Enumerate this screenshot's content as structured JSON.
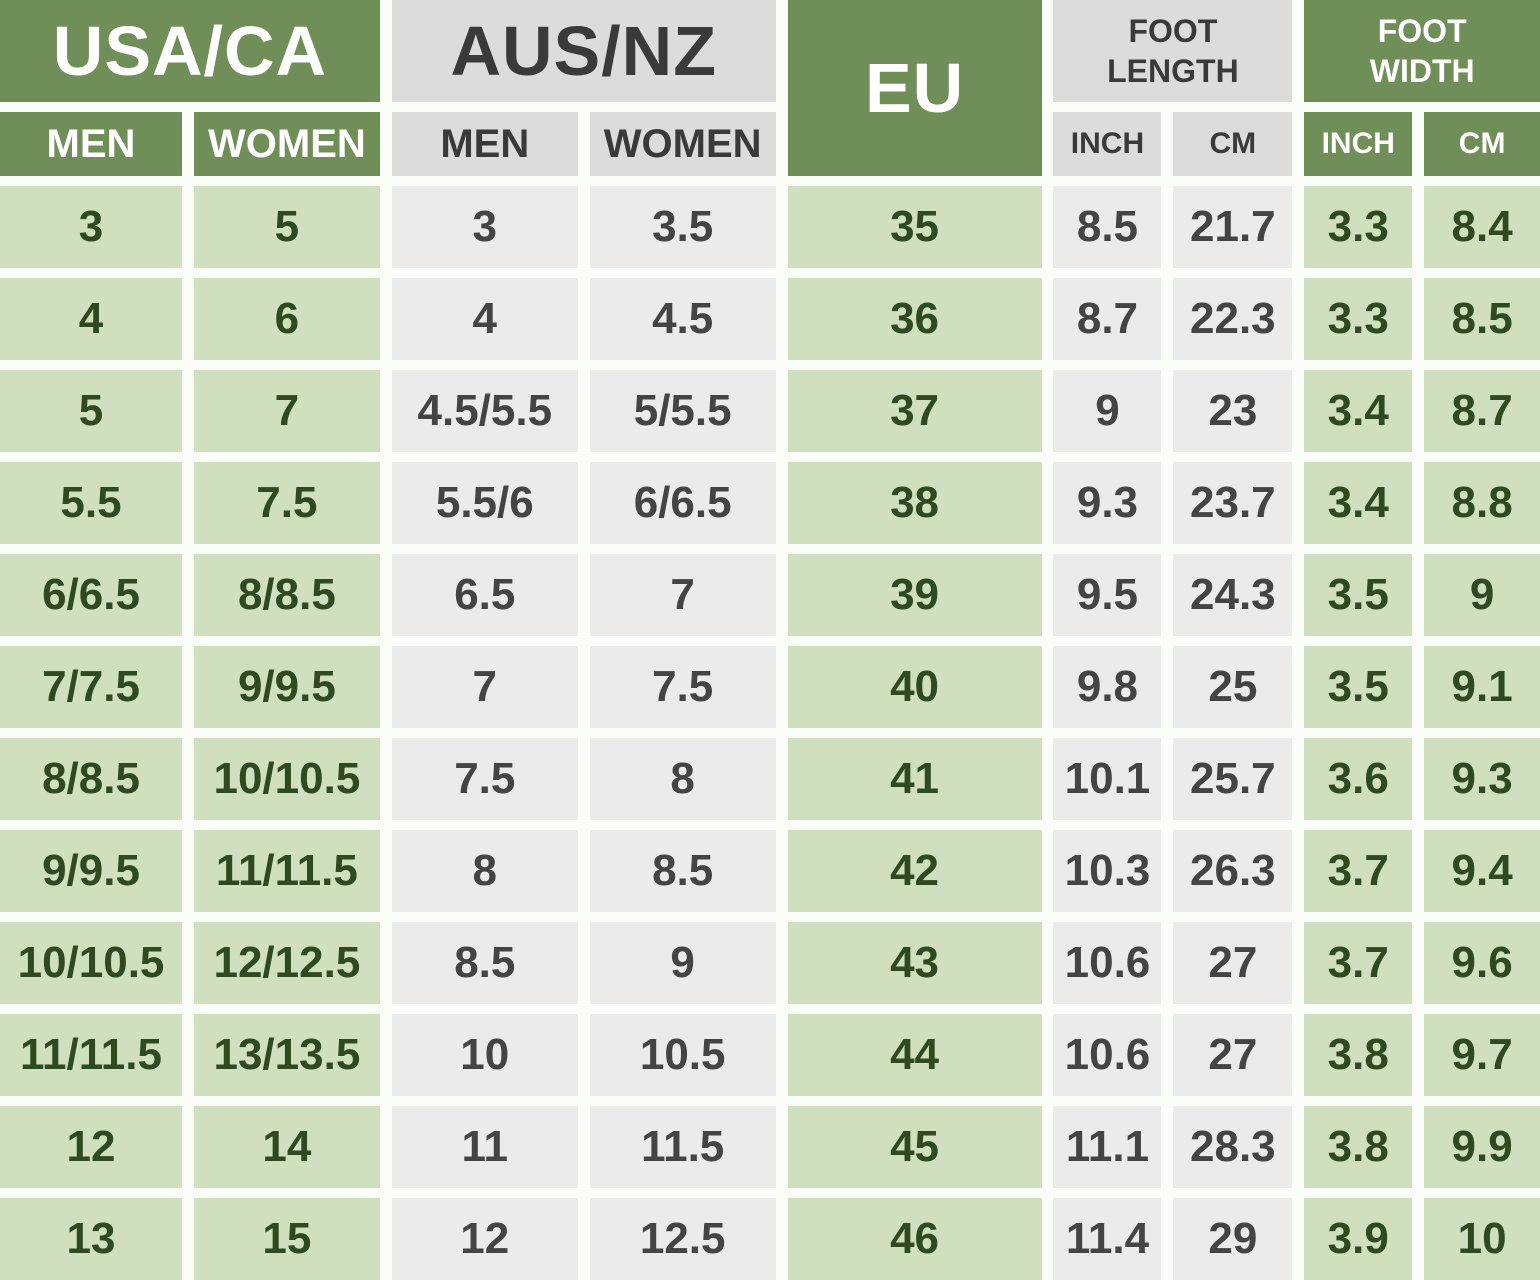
{
  "colors": {
    "dark_green": "#708f58",
    "light_green": "#d0dfbe",
    "header_gray": "#dcdcdc",
    "cell_gray": "#ebebeb"
  },
  "headers": {
    "usa_ca": "USA/CA",
    "aus_nz": "AUS/NZ",
    "eu": "EU",
    "foot_length": "FOOT LENGTH",
    "foot_width": "FOOT WIDTH",
    "men": "MEN",
    "women": "WOMEN",
    "inch": "INCH",
    "cm": "CM"
  },
  "rows": [
    [
      "3",
      "5",
      "3",
      "3.5",
      "35",
      "8.5",
      "21.7",
      "3.3",
      "8.4"
    ],
    [
      "4",
      "6",
      "4",
      "4.5",
      "36",
      "8.7",
      "22.3",
      "3.3",
      "8.5"
    ],
    [
      "5",
      "7",
      "4.5/5.5",
      "5/5.5",
      "37",
      "9",
      "23",
      "3.4",
      "8.7"
    ],
    [
      "5.5",
      "7.5",
      "5.5/6",
      "6/6.5",
      "38",
      "9.3",
      "23.7",
      "3.4",
      "8.8"
    ],
    [
      "6/6.5",
      "8/8.5",
      "6.5",
      "7",
      "39",
      "9.5",
      "24.3",
      "3.5",
      "9"
    ],
    [
      "7/7.5",
      "9/9.5",
      "7",
      "7.5",
      "40",
      "9.8",
      "25",
      "3.5",
      "9.1"
    ],
    [
      "8/8.5",
      "10/10.5",
      "7.5",
      "8",
      "41",
      "10.1",
      "25.7",
      "3.6",
      "9.3"
    ],
    [
      "9/9.5",
      "11/11.5",
      "8",
      "8.5",
      "42",
      "10.3",
      "26.3",
      "3.7",
      "9.4"
    ],
    [
      "10/10.5",
      "12/12.5",
      "8.5",
      "9",
      "43",
      "10.6",
      "27",
      "3.7",
      "9.6"
    ],
    [
      "11/11.5",
      "13/13.5",
      "10",
      "10.5",
      "44",
      "10.6",
      "27",
      "3.8",
      "9.7"
    ],
    [
      "12",
      "14",
      "11",
      "11.5",
      "45",
      "11.1",
      "28.3",
      "3.8",
      "9.9"
    ],
    [
      "13",
      "15",
      "12",
      "12.5",
      "46",
      "11.4",
      "29",
      "3.9",
      "10"
    ]
  ]
}
